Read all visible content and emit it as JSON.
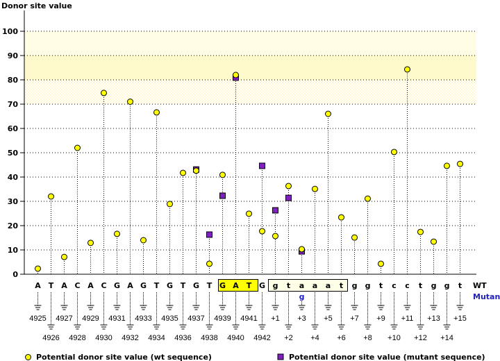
{
  "chart_data": {
    "type": "scatter",
    "title": "",
    "ylabel": "Donor site value",
    "ylim": [
      0,
      100
    ],
    "yticks": [
      0,
      10,
      20,
      30,
      40,
      50,
      60,
      70,
      80,
      90,
      100
    ],
    "grid": true,
    "bands": [
      {
        "from": 70,
        "to": 80,
        "color": "#fffbe0"
      },
      {
        "from": 80,
        "to": 90,
        "color": "#fffacc"
      },
      {
        "from": 90,
        "to": 100,
        "color": "#fffde4"
      }
    ],
    "wt_label": "WT",
    "mutant_label": "Mutant",
    "positions": [
      "4925",
      "4926",
      "4927",
      "4928",
      "4929",
      "4930",
      "4931",
      "4932",
      "4933",
      "4934",
      "4935",
      "4936",
      "4937",
      "4938",
      "4939",
      "4940",
      "4941",
      "4942",
      "+1",
      "+2",
      "+3",
      "+4",
      "+5",
      "+6",
      "+7",
      "+8",
      "+9",
      "+10",
      "+11",
      "+12",
      "+13",
      "+14",
      "+15"
    ],
    "wt_sequence": [
      "A",
      "T",
      "A",
      "C",
      "A",
      "C",
      "G",
      "A",
      "G",
      "T",
      "G",
      "T",
      "G",
      "T",
      "G",
      "A",
      "T",
      "G",
      "g",
      "t",
      "a",
      "a",
      "a",
      "t",
      "g",
      "g",
      "t",
      "c",
      "c",
      "t",
      "g",
      "g",
      "t"
    ],
    "mutant_sequence": [
      "",
      "",
      "",
      "",
      "",
      "",
      "",
      "",
      "",
      "",
      "",
      "",
      "",
      "",
      "",
      "",
      "",
      "",
      "",
      "",
      "g",
      "",
      "",
      "",
      "",
      "",
      "",
      "",
      "",
      "",
      "",
      "",
      ""
    ],
    "highlight_start_codon": [
      15,
      17
    ],
    "highlight_intron_box": [
      18,
      23
    ],
    "series": [
      {
        "name": "Potential donor site value (wt sequence)",
        "color": "#ffff00",
        "marker": "circle",
        "values": [
          2.3,
          32,
          7.1,
          52,
          12.9,
          74.6,
          16.6,
          71,
          14,
          66.6,
          28.9,
          41.7,
          42.6,
          4.3,
          40.9,
          82,
          24.9,
          17.7,
          15.7,
          36.3,
          10.3,
          35.1,
          66,
          23.4,
          15.1,
          31.1,
          4.3,
          50.3,
          84.3,
          17.4,
          13.4,
          44.6,
          45.4
        ]
      },
      {
        "name": "Potential donor site value (mutant sequence)",
        "color": "#8020c0",
        "marker": "square",
        "values": [
          null,
          null,
          null,
          null,
          null,
          null,
          null,
          null,
          null,
          null,
          null,
          null,
          43.1,
          16.3,
          32.3,
          80.9,
          null,
          44.6,
          26.3,
          31.4,
          9.4,
          null,
          null,
          null,
          null,
          null,
          null,
          null,
          null,
          null,
          null,
          null,
          null
        ]
      }
    ]
  }
}
